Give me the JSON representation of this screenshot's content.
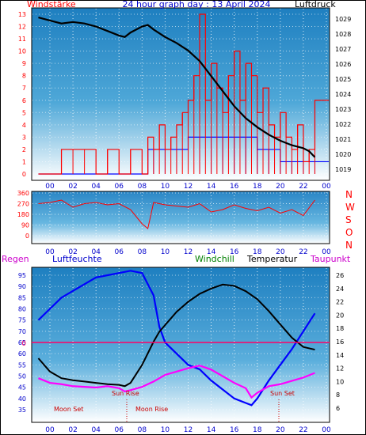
{
  "header": {
    "left_label": "Windstärke",
    "title": "24 hour graph day : 13 April 2024",
    "right_label": "Luftdruck"
  },
  "middle": {
    "compass": [
      "N",
      "W",
      "S",
      "O",
      "N"
    ]
  },
  "bottom_header": {
    "regen": "Regen",
    "luftfeuchte": "Luftfeuchte",
    "windchill": "Windchill",
    "temperatur": "Temperatur",
    "taupunkt": "Taupunkt"
  },
  "annotations": {
    "sun_rise": "Sun Rise",
    "moon_set": "Moon Set",
    "moon_rise": "Moon Rise",
    "sun_set": "Sun Set",
    "regen_zero": "0"
  },
  "colors": {
    "gust": "#ff0000",
    "wind": "#0000ff",
    "pressure": "#000000",
    "direction": "#ff0000",
    "humidity": "#0000ff",
    "temperature": "#000000",
    "windchill": "#008000",
    "dewpoint": "#ff00ff",
    "regen": "#ff0066",
    "gradient_top": "#1e7fc0",
    "gradient_bottom": "#ffffff"
  },
  "chart_data": [
    {
      "type": "line",
      "title": "24 hour graph day : 13 April 2024",
      "x_ticks": [
        "00",
        "02",
        "04",
        "06",
        "08",
        "10",
        "12",
        "14",
        "16",
        "18",
        "20",
        "22",
        "00"
      ],
      "y_left_label": "Windstärke",
      "y_left_ticks": [
        0,
        1,
        2,
        3,
        4,
        5,
        6,
        7,
        8,
        9,
        10,
        11,
        12,
        13
      ],
      "y_right_label": "Luftdruck",
      "y_right_ticks": [
        1019,
        1020,
        1021,
        1022,
        1023,
        1024,
        1025,
        1026,
        1027,
        1028,
        1029
      ],
      "series": [
        {
          "name": "Luftdruck",
          "axis": "right",
          "x": [
            -1,
            0,
            1,
            2,
            3,
            4,
            5,
            6,
            6.5,
            7,
            8,
            8.5,
            9,
            10,
            11,
            12,
            13,
            14,
            15,
            16,
            17,
            18,
            19,
            20,
            21,
            22,
            22.5,
            23
          ],
          "values": [
            1029.1,
            1028.9,
            1028.7,
            1028.8,
            1028.7,
            1028.5,
            1028.2,
            1027.9,
            1027.8,
            1028.1,
            1028.5,
            1028.6,
            1028.3,
            1027.8,
            1027.4,
            1026.9,
            1026.2,
            1025.2,
            1024.2,
            1023.2,
            1022.4,
            1021.8,
            1021.3,
            1020.9,
            1020.6,
            1020.4,
            1020.2,
            1019.8
          ]
        },
        {
          "name": "Windböen",
          "axis": "left",
          "x": [
            -1,
            1,
            2,
            3,
            4,
            5,
            6,
            7,
            8,
            8.5,
            9,
            9.5,
            10,
            10.5,
            11,
            11.5,
            12,
            12.5,
            13,
            13.5,
            14,
            14.5,
            15,
            15.5,
            16,
            16.5,
            17,
            17.5,
            18,
            18.5,
            19,
            19.5,
            20,
            20.5,
            21,
            21.5,
            22,
            22.5,
            23
          ],
          "values": [
            0,
            2,
            2,
            2,
            0,
            2,
            0,
            2,
            0,
            3,
            2,
            4,
            2,
            3,
            4,
            5,
            6,
            8,
            13,
            6,
            9,
            7,
            5,
            8,
            10,
            6,
            9,
            8,
            5,
            7,
            4,
            3,
            5,
            3,
            2,
            4,
            1,
            2,
            6
          ]
        },
        {
          "name": "Wind",
          "axis": "left",
          "x": [
            -1,
            8,
            8.5,
            9,
            10,
            11,
            12,
            13,
            14,
            15,
            16,
            17,
            18,
            19,
            20,
            21,
            22,
            23
          ],
          "values": [
            0,
            0,
            2,
            2,
            2,
            2,
            3,
            3,
            3,
            3,
            3,
            3,
            2,
            2,
            1,
            1,
            1,
            1
          ]
        }
      ]
    },
    {
      "type": "line",
      "title": "",
      "x_ticks": [
        "00",
        "02",
        "04",
        "06",
        "08",
        "10",
        "12",
        "14",
        "16",
        "18",
        "20",
        "22",
        "00"
      ],
      "y_ticks": [
        0,
        90,
        180,
        270,
        360
      ],
      "series": [
        {
          "name": "Windrichtung",
          "x": [
            -1,
            0,
            1,
            2,
            3,
            4,
            5,
            6,
            7,
            8,
            8.5,
            9,
            10,
            11,
            12,
            13,
            14,
            15,
            16,
            17,
            18,
            19,
            20,
            21,
            22,
            23
          ],
          "values": [
            270,
            280,
            300,
            240,
            270,
            280,
            260,
            270,
            220,
            100,
            60,
            280,
            260,
            250,
            240,
            270,
            200,
            220,
            260,
            230,
            210,
            240,
            190,
            220,
            170,
            300
          ]
        }
      ]
    },
    {
      "type": "line",
      "title": "",
      "x_ticks": [
        "00",
        "02",
        "04",
        "06",
        "08",
        "10",
        "12",
        "14",
        "16",
        "18",
        "20",
        "22",
        "00"
      ],
      "y_left_label": "Luftfeuchte",
      "y_left_ticks": [
        35,
        40,
        45,
        50,
        55,
        60,
        65,
        70,
        75,
        80,
        85,
        90,
        95
      ],
      "y_right_label": "Temperatur",
      "y_right_ticks": [
        6,
        8,
        10,
        12,
        14,
        16,
        18,
        20,
        22,
        24,
        26
      ],
      "series": [
        {
          "name": "Luftfeuchte",
          "axis": "left",
          "x": [
            -1,
            0,
            1,
            2,
            3,
            4,
            5,
            6,
            7,
            8,
            9,
            9.5,
            10,
            11,
            12,
            13,
            14,
            15,
            16,
            17,
            17.5,
            18,
            19,
            20,
            21,
            22,
            23
          ],
          "values": [
            75,
            80,
            85,
            88,
            91,
            94,
            95,
            96,
            97,
            96,
            86,
            72,
            65,
            60,
            55,
            53,
            48,
            44,
            40,
            38,
            37,
            40,
            48,
            55,
            62,
            70,
            78
          ]
        },
        {
          "name": "Temperatur",
          "axis": "right",
          "x": [
            -1,
            0,
            1,
            2,
            3,
            4,
            5,
            6,
            6.5,
            7,
            8,
            9,
            9.5,
            10,
            11,
            12,
            13,
            14,
            15,
            16,
            17,
            18,
            19,
            20,
            21,
            22,
            23
          ],
          "values": [
            13.5,
            11.5,
            10.5,
            10.2,
            10,
            9.8,
            9.6,
            9.5,
            9.3,
            9.8,
            12.5,
            16,
            17.5,
            18.5,
            20.5,
            22,
            23.2,
            24,
            24.6,
            24.4,
            23.6,
            22.4,
            20.6,
            18.6,
            16.6,
            15.2,
            14.8
          ]
        },
        {
          "name": "Taupunkt",
          "axis": "right",
          "x": [
            -1,
            0,
            1,
            2,
            3,
            4,
            5,
            6,
            6.5,
            7,
            8,
            9,
            10,
            11,
            12,
            13,
            14,
            15,
            16,
            17,
            17.5,
            18,
            19,
            20,
            21,
            22,
            23
          ],
          "values": [
            10.5,
            9.8,
            9.6,
            9.3,
            9.2,
            9.1,
            9.3,
            9.0,
            8.5,
            8.7,
            9.2,
            10,
            11,
            11.5,
            12,
            12.4,
            11.8,
            10.8,
            9.8,
            9,
            7.6,
            8.3,
            9.3,
            9.6,
            10.1,
            10.6,
            11.3
          ]
        }
      ]
    }
  ]
}
